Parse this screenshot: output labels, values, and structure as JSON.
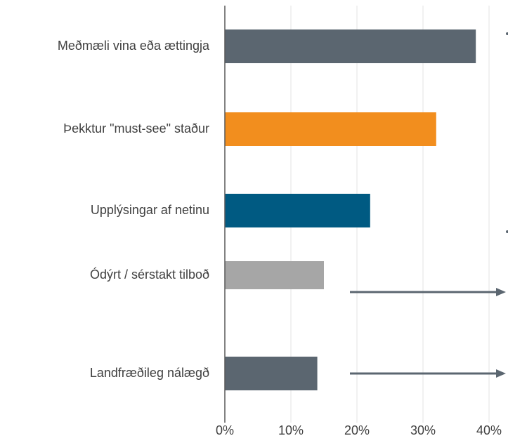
{
  "chart_data": {
    "type": "bar",
    "orientation": "horizontal",
    "categories": [
      "Meðmæli vina eða ættingja",
      "Þekktur \"must-see\" staður",
      "Upplýsingar af netinu",
      "Ódýrt / sérstakt tilboð",
      "Landfræðileg nálægð"
    ],
    "values": [
      38,
      32,
      22,
      15,
      14
    ],
    "colors": [
      "#5b6670",
      "#f28e1e",
      "#005a82",
      "#a6a6a6",
      "#5b6670"
    ],
    "xlim": [
      0,
      40
    ],
    "xticks": [
      {
        "value": 0,
        "label": "0%"
      },
      {
        "value": 10,
        "label": "10%"
      },
      {
        "value": 20,
        "label": "20%"
      },
      {
        "value": 30,
        "label": "30%"
      },
      {
        "value": 40,
        "label": "40%"
      }
    ],
    "grid": true
  }
}
